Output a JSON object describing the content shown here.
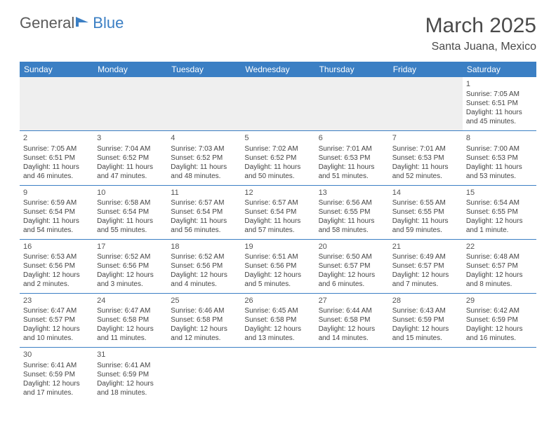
{
  "logo": {
    "part1": "General",
    "part2": "Blue"
  },
  "title": "March 2025",
  "location": "Santa Juana, Mexico",
  "header_color": "#3b7fc4",
  "dayNames": [
    "Sunday",
    "Monday",
    "Tuesday",
    "Wednesday",
    "Thursday",
    "Friday",
    "Saturday"
  ],
  "weeks": [
    [
      null,
      null,
      null,
      null,
      null,
      null,
      {
        "n": "1",
        "sunrise": "7:05 AM",
        "sunset": "6:51 PM",
        "daylight": "11 hours and 45 minutes."
      }
    ],
    [
      {
        "n": "2",
        "sunrise": "7:05 AM",
        "sunset": "6:51 PM",
        "daylight": "11 hours and 46 minutes."
      },
      {
        "n": "3",
        "sunrise": "7:04 AM",
        "sunset": "6:52 PM",
        "daylight": "11 hours and 47 minutes."
      },
      {
        "n": "4",
        "sunrise": "7:03 AM",
        "sunset": "6:52 PM",
        "daylight": "11 hours and 48 minutes."
      },
      {
        "n": "5",
        "sunrise": "7:02 AM",
        "sunset": "6:52 PM",
        "daylight": "11 hours and 50 minutes."
      },
      {
        "n": "6",
        "sunrise": "7:01 AM",
        "sunset": "6:53 PM",
        "daylight": "11 hours and 51 minutes."
      },
      {
        "n": "7",
        "sunrise": "7:01 AM",
        "sunset": "6:53 PM",
        "daylight": "11 hours and 52 minutes."
      },
      {
        "n": "8",
        "sunrise": "7:00 AM",
        "sunset": "6:53 PM",
        "daylight": "11 hours and 53 minutes."
      }
    ],
    [
      {
        "n": "9",
        "sunrise": "6:59 AM",
        "sunset": "6:54 PM",
        "daylight": "11 hours and 54 minutes."
      },
      {
        "n": "10",
        "sunrise": "6:58 AM",
        "sunset": "6:54 PM",
        "daylight": "11 hours and 55 minutes."
      },
      {
        "n": "11",
        "sunrise": "6:57 AM",
        "sunset": "6:54 PM",
        "daylight": "11 hours and 56 minutes."
      },
      {
        "n": "12",
        "sunrise": "6:57 AM",
        "sunset": "6:54 PM",
        "daylight": "11 hours and 57 minutes."
      },
      {
        "n": "13",
        "sunrise": "6:56 AM",
        "sunset": "6:55 PM",
        "daylight": "11 hours and 58 minutes."
      },
      {
        "n": "14",
        "sunrise": "6:55 AM",
        "sunset": "6:55 PM",
        "daylight": "11 hours and 59 minutes."
      },
      {
        "n": "15",
        "sunrise": "6:54 AM",
        "sunset": "6:55 PM",
        "daylight": "12 hours and 1 minute."
      }
    ],
    [
      {
        "n": "16",
        "sunrise": "6:53 AM",
        "sunset": "6:56 PM",
        "daylight": "12 hours and 2 minutes."
      },
      {
        "n": "17",
        "sunrise": "6:52 AM",
        "sunset": "6:56 PM",
        "daylight": "12 hours and 3 minutes."
      },
      {
        "n": "18",
        "sunrise": "6:52 AM",
        "sunset": "6:56 PM",
        "daylight": "12 hours and 4 minutes."
      },
      {
        "n": "19",
        "sunrise": "6:51 AM",
        "sunset": "6:56 PM",
        "daylight": "12 hours and 5 minutes."
      },
      {
        "n": "20",
        "sunrise": "6:50 AM",
        "sunset": "6:57 PM",
        "daylight": "12 hours and 6 minutes."
      },
      {
        "n": "21",
        "sunrise": "6:49 AM",
        "sunset": "6:57 PM",
        "daylight": "12 hours and 7 minutes."
      },
      {
        "n": "22",
        "sunrise": "6:48 AM",
        "sunset": "6:57 PM",
        "daylight": "12 hours and 8 minutes."
      }
    ],
    [
      {
        "n": "23",
        "sunrise": "6:47 AM",
        "sunset": "6:57 PM",
        "daylight": "12 hours and 10 minutes."
      },
      {
        "n": "24",
        "sunrise": "6:47 AM",
        "sunset": "6:58 PM",
        "daylight": "12 hours and 11 minutes."
      },
      {
        "n": "25",
        "sunrise": "6:46 AM",
        "sunset": "6:58 PM",
        "daylight": "12 hours and 12 minutes."
      },
      {
        "n": "26",
        "sunrise": "6:45 AM",
        "sunset": "6:58 PM",
        "daylight": "12 hours and 13 minutes."
      },
      {
        "n": "27",
        "sunrise": "6:44 AM",
        "sunset": "6:58 PM",
        "daylight": "12 hours and 14 minutes."
      },
      {
        "n": "28",
        "sunrise": "6:43 AM",
        "sunset": "6:59 PM",
        "daylight": "12 hours and 15 minutes."
      },
      {
        "n": "29",
        "sunrise": "6:42 AM",
        "sunset": "6:59 PM",
        "daylight": "12 hours and 16 minutes."
      }
    ],
    [
      {
        "n": "30",
        "sunrise": "6:41 AM",
        "sunset": "6:59 PM",
        "daylight": "12 hours and 17 minutes."
      },
      {
        "n": "31",
        "sunrise": "6:41 AM",
        "sunset": "6:59 PM",
        "daylight": "12 hours and 18 minutes."
      },
      null,
      null,
      null,
      null,
      null
    ]
  ],
  "labels": {
    "sunrise": "Sunrise: ",
    "sunset": "Sunset: ",
    "daylight": "Daylight: "
  }
}
